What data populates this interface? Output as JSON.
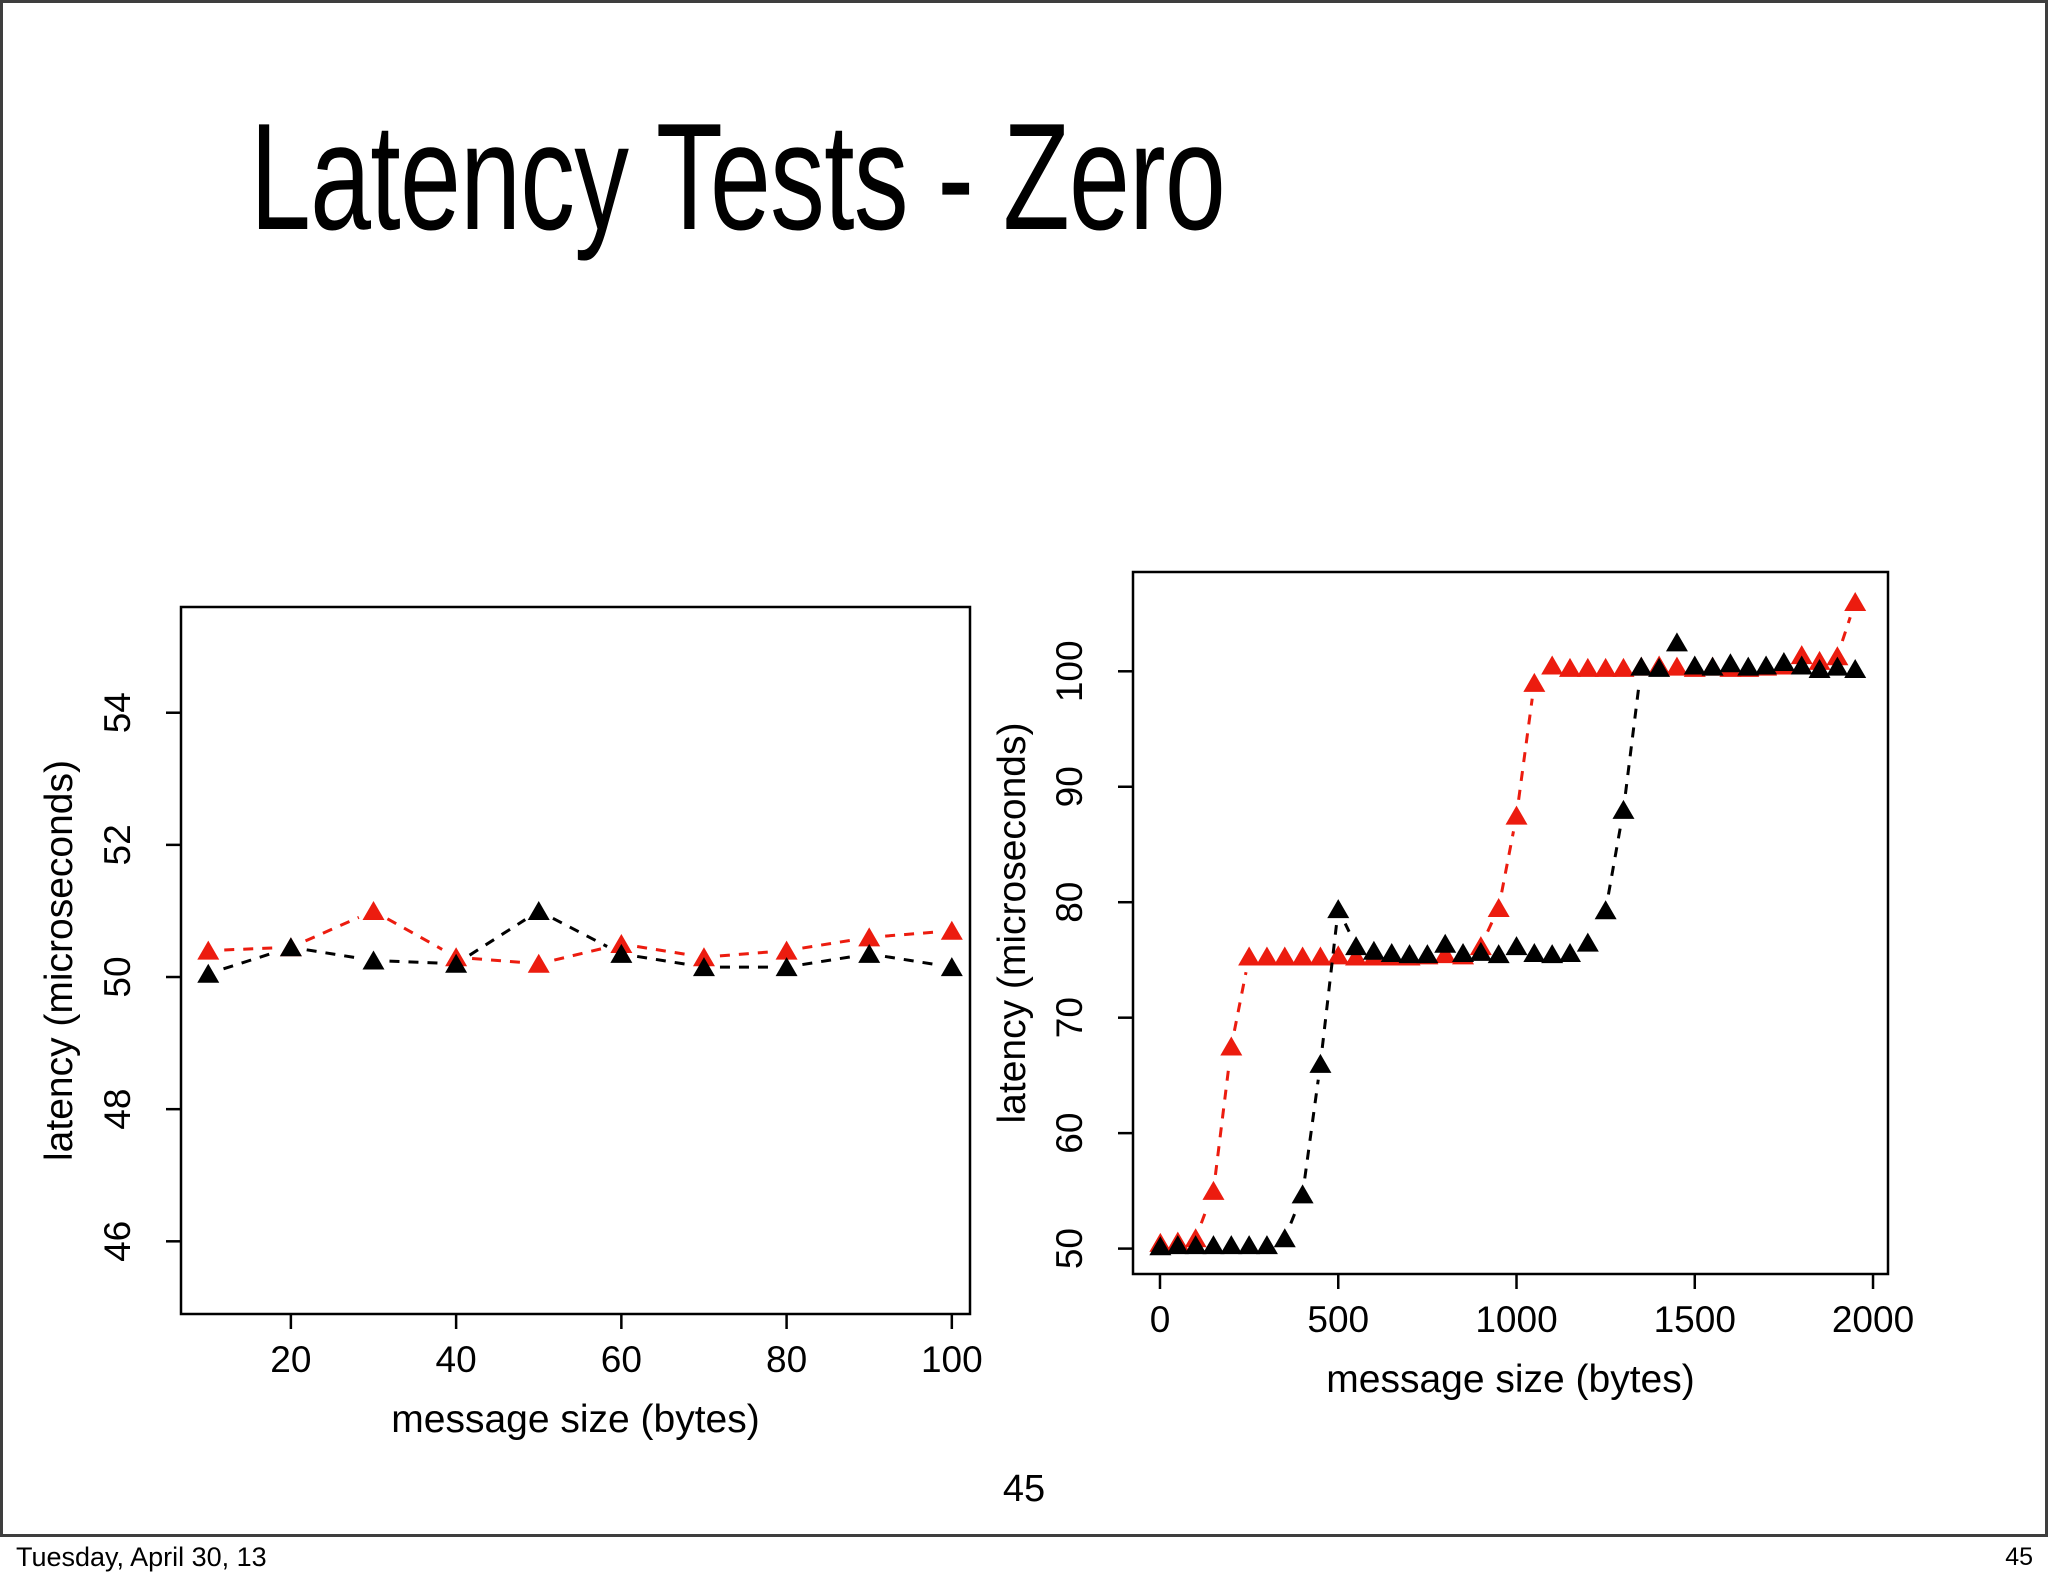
{
  "slide": {
    "title": "Latency Tests - Zero",
    "center_page_number": "45",
    "footer": {
      "date": "Tuesday, April 30, 13",
      "page_number": "45"
    }
  },
  "colors": {
    "series_red": "#ec1c0f",
    "series_black": "#000000",
    "frame": "#3e3e3e",
    "axis": "#000000"
  },
  "chart_data": [
    {
      "type": "line",
      "title": "",
      "xlabel": "message size (bytes)",
      "ylabel": "latency (microseconds)",
      "xlim": [
        6.7,
        102.2
      ],
      "ylim": [
        44.9,
        55.6
      ],
      "xticks": [
        20,
        40,
        60,
        80,
        100
      ],
      "yticks": [
        46,
        48,
        50,
        52,
        54
      ],
      "grid": false,
      "legend": "none",
      "marker": "filled-triangle-up",
      "linestyle": "dashed",
      "x": [
        10,
        20,
        30,
        40,
        50,
        60,
        70,
        80,
        90,
        100
      ],
      "series": [
        {
          "name": "red",
          "color": "#ec1c0f",
          "values": [
            50.4,
            50.45,
            51.0,
            50.3,
            50.2,
            50.5,
            50.3,
            50.4,
            50.6,
            50.7
          ]
        },
        {
          "name": "black",
          "color": "#000000",
          "values": [
            50.05,
            50.45,
            50.25,
            50.2,
            51.0,
            50.35,
            50.15,
            50.15,
            50.35,
            50.15
          ]
        }
      ]
    },
    {
      "type": "line",
      "title": "",
      "xlabel": "message size (bytes)",
      "ylabel": "latency (microseconds)",
      "xlim": [
        -75.7,
        2042
      ],
      "ylim": [
        47.8,
        108.6
      ],
      "xticks": [
        0,
        500,
        1000,
        1500,
        2000
      ],
      "yticks": [
        50,
        60,
        70,
        80,
        90,
        100
      ],
      "grid": false,
      "legend": "none",
      "marker": "filled-triangle-up",
      "linestyle": "dashed",
      "x": [
        1,
        50,
        100,
        150,
        200,
        250,
        300,
        350,
        400,
        450,
        500,
        550,
        600,
        650,
        700,
        750,
        800,
        850,
        900,
        950,
        1000,
        1050,
        1100,
        1150,
        1200,
        1250,
        1300,
        1350,
        1400,
        1450,
        1500,
        1550,
        1600,
        1650,
        1700,
        1750,
        1800,
        1850,
        1900,
        1950
      ],
      "series": [
        {
          "name": "red",
          "color": "#ec1c0f",
          "values": [
            50.5,
            50.6,
            50.9,
            55.0,
            67.5,
            75.3,
            75.3,
            75.3,
            75.3,
            75.3,
            75.4,
            75.3,
            75.3,
            75.3,
            75.3,
            75.4,
            75.5,
            75.4,
            76.2,
            79.5,
            87.5,
            99.0,
            100.5,
            100.3,
            100.3,
            100.3,
            100.3,
            100.4,
            100.5,
            100.4,
            100.3,
            100.4,
            100.3,
            100.3,
            100.4,
            100.5,
            101.4,
            100.9,
            101.3,
            106.0
          ]
        },
        {
          "name": "black",
          "color": "#000000",
          "values": [
            50.2,
            50.3,
            50.3,
            50.3,
            50.3,
            50.3,
            50.3,
            50.9,
            54.7,
            66.0,
            79.4,
            76.2,
            75.8,
            75.6,
            75.5,
            75.5,
            76.4,
            75.6,
            75.7,
            75.5,
            76.2,
            75.6,
            75.5,
            75.6,
            76.5,
            79.3,
            88.0,
            100.4,
            100.3,
            102.5,
            100.5,
            100.4,
            100.7,
            100.4,
            100.5,
            100.8,
            100.5,
            100.2,
            100.4,
            100.2
          ]
        }
      ]
    }
  ]
}
